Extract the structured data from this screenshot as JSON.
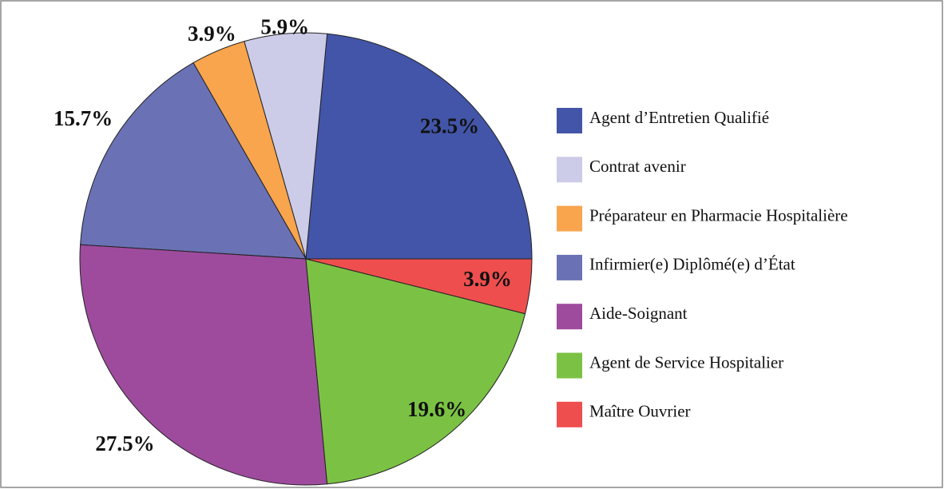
{
  "chart_data": {
    "type": "pie",
    "categories": [
      "Agent d’Entretien Qualifié",
      "Contrat avenir",
      "Préparateur en Pharmacie Hospitalière",
      "Infirmier(e) Diplômé(e) d’État",
      "Aide-Soignant",
      "Agent de Service Hospitalier",
      "Maître Ouvrier"
    ],
    "values": [
      23.5,
      5.9,
      3.9,
      15.7,
      27.5,
      19.6,
      3.9
    ],
    "value_labels": [
      "23.5%",
      "5.9%",
      "3.9%",
      "15.7%",
      "27.5%",
      "19.6%",
      "3.9%"
    ],
    "colors": [
      "#4355a8",
      "#cccbe8",
      "#f8a54e",
      "#6a72b5",
      "#9e4b9d",
      "#7bc244",
      "#ef4e4e"
    ],
    "legend": "right"
  }
}
